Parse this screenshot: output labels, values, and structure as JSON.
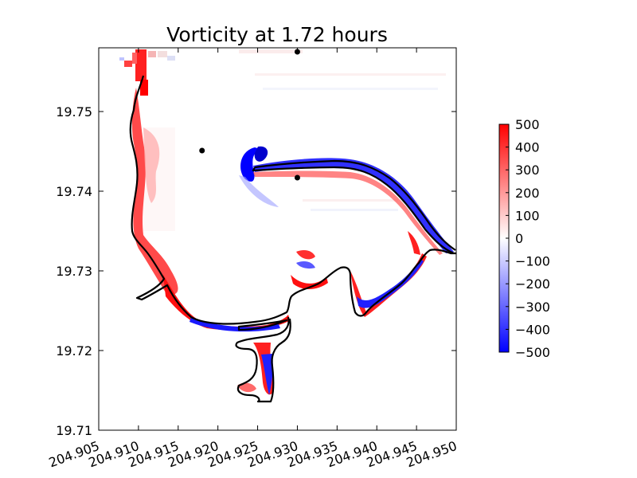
{
  "chart_data": {
    "type": "heatmap",
    "title": "Vorticity at 1.72 hours",
    "xlabel": "",
    "ylabel": "",
    "xlim": [
      204.905,
      204.95
    ],
    "ylim": [
      19.71,
      19.758
    ],
    "x_ticks": [
      204.905,
      204.91,
      204.915,
      204.92,
      204.925,
      204.93,
      204.935,
      204.94,
      204.945,
      204.95
    ],
    "x_tick_labels": [
      "204.905",
      "204.910",
      "204.915",
      "204.920",
      "204.925",
      "204.930",
      "204.935",
      "204.940",
      "204.945",
      "204.950"
    ],
    "y_ticks": [
      19.71,
      19.72,
      19.73,
      19.74,
      19.75
    ],
    "y_tick_labels": [
      "19.71",
      "19.72",
      "19.73",
      "19.74",
      "19.75"
    ],
    "grid": false,
    "colorbar": {
      "min": -500,
      "max": 500,
      "ticks": [
        500,
        400,
        300,
        200,
        100,
        0,
        -100,
        -200,
        -300,
        -400,
        -500
      ],
      "tick_labels": [
        "500",
        "400",
        "300",
        "200",
        "100",
        "0",
        "−100",
        "−200",
        "−300",
        "−400",
        "−500"
      ],
      "colormap": [
        "#0000ff",
        "#ffffff",
        "#ff0000"
      ]
    },
    "gauge_points": [
      {
        "x": 204.93,
        "y": 19.7575
      },
      {
        "x": 204.918,
        "y": 19.7451
      },
      {
        "x": 204.93,
        "y": 19.7417
      }
    ],
    "colors": {
      "positive": "#ff0000",
      "negative": "#0000ff",
      "coastline": "#000000",
      "zero": "#ffffff"
    }
  }
}
